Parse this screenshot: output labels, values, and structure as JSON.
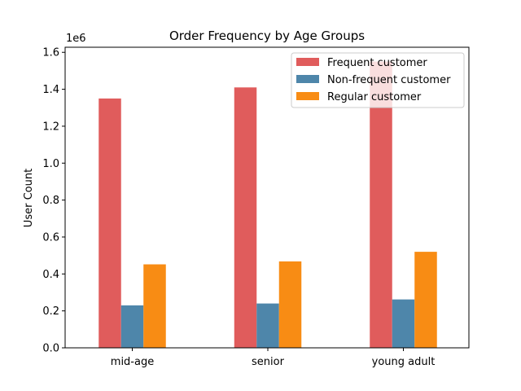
{
  "chart_data": {
    "type": "bar",
    "title": "Order Frequency by Age Groups",
    "xlabel": "",
    "ylabel": "User Count",
    "offset_label": "1e6",
    "categories": [
      "mid-age",
      "senior",
      "young adult"
    ],
    "series": [
      {
        "name": "Frequent customer",
        "color": "#e05c5c",
        "values": [
          1350000,
          1410000,
          1550000
        ]
      },
      {
        "name": "Non-frequent customer",
        "color": "#4e86aa",
        "values": [
          230000,
          240000,
          262000
        ]
      },
      {
        "name": "Regular customer",
        "color": "#f88c14",
        "values": [
          452000,
          468000,
          520000
        ]
      }
    ],
    "ylim": [
      0,
      1627500
    ],
    "yticks": [
      0,
      200000,
      400000,
      600000,
      800000,
      1000000,
      1200000,
      1400000,
      1600000
    ],
    "ytick_labels": [
      "0.0",
      "0.2",
      "0.4",
      "0.6",
      "0.8",
      "1.0",
      "1.2",
      "1.4",
      "1.6"
    ],
    "grid": false,
    "legend_position": "upper right"
  }
}
